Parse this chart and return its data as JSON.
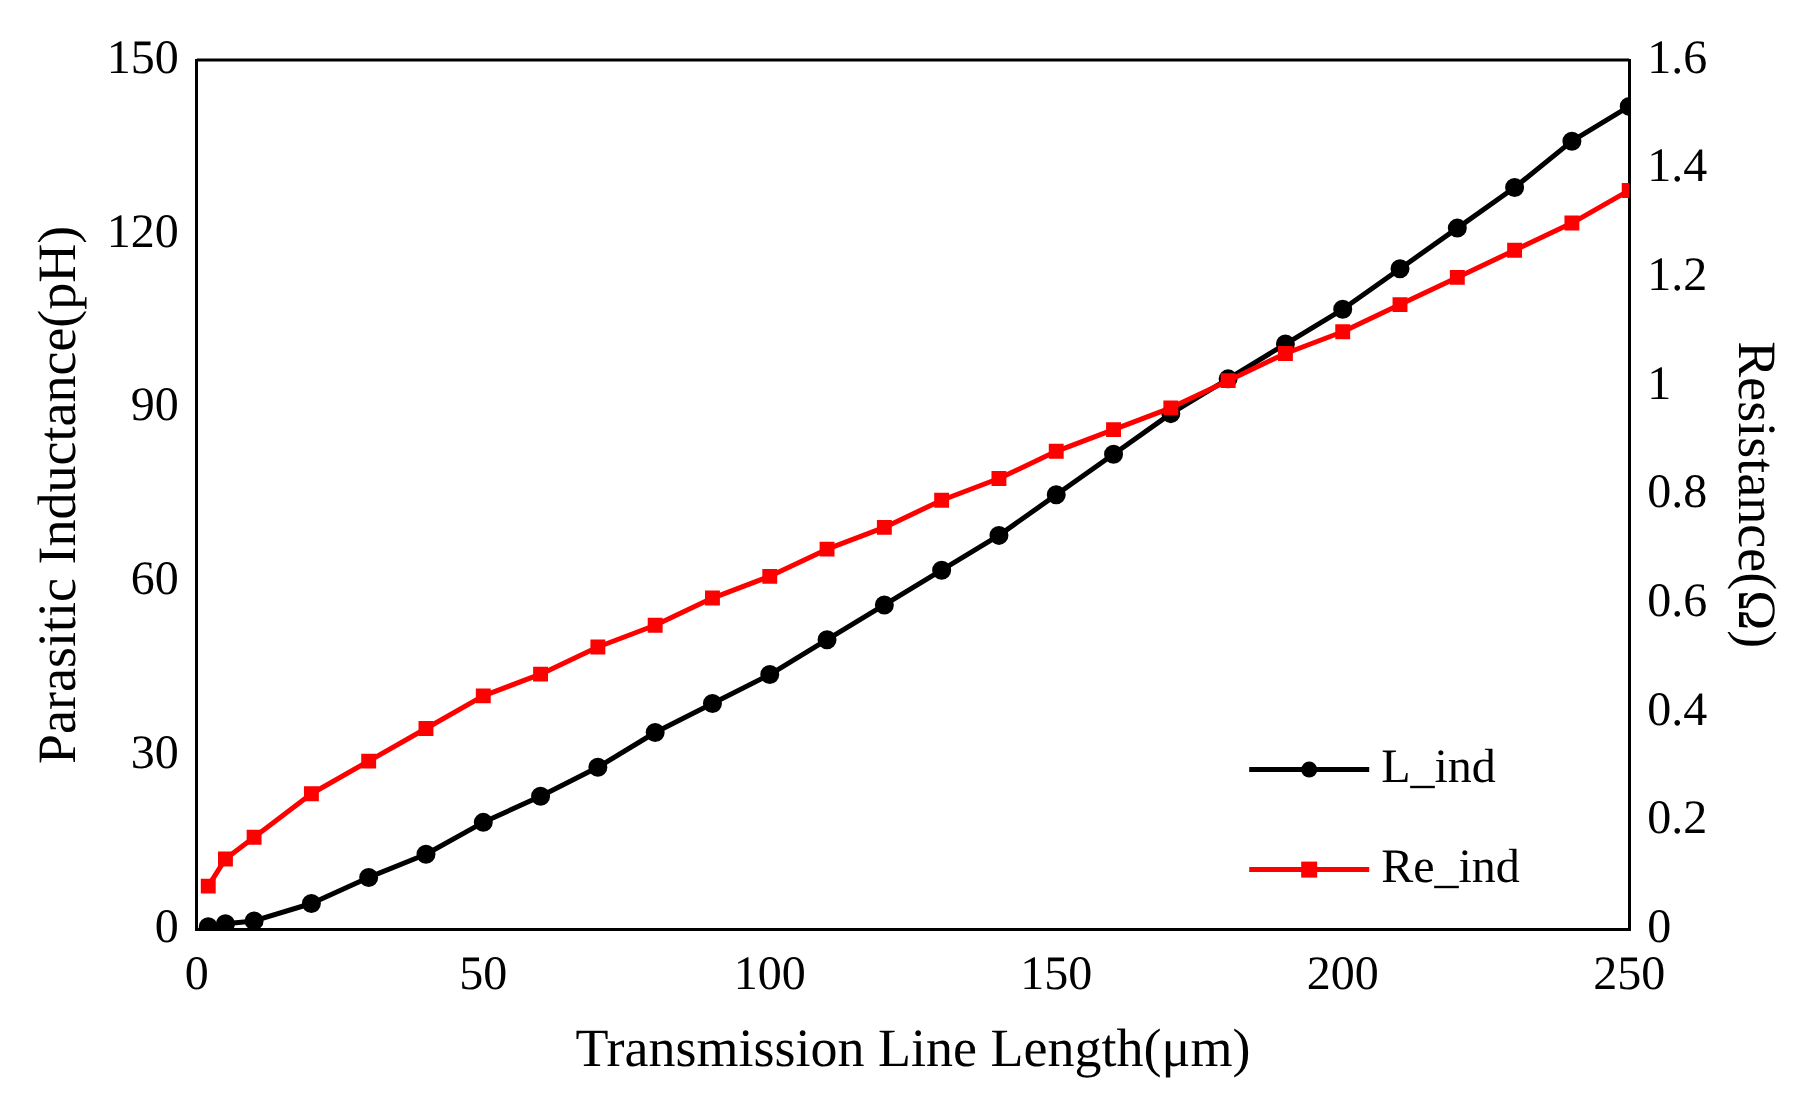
{
  "chart_data": {
    "type": "line",
    "xlabel": "Transmission Line Length(μm)",
    "ylabel": "Parasitic Inductance(pH)",
    "y2label": "Resistance(Ω)",
    "xlim": [
      0,
      250
    ],
    "xticks": [
      0,
      50,
      100,
      150,
      200,
      250
    ],
    "ylim": [
      0,
      150
    ],
    "yticks": [
      0,
      30,
      60,
      90,
      120,
      150
    ],
    "y2lim": [
      0,
      1.6
    ],
    "y2ticks": [
      0,
      0.2,
      0.4,
      0.6,
      0.8,
      1,
      1.2,
      1.4,
      1.6
    ],
    "legend": "bottom right",
    "grid": false,
    "line_style": "solid",
    "series": [
      {
        "name": "L_ind",
        "color": "#000000",
        "marker": "circle",
        "x": [
          2,
          5,
          10,
          20,
          30,
          40,
          50,
          60,
          70,
          80,
          90,
          100,
          110,
          120,
          130,
          140,
          150,
          160,
          170,
          180,
          190,
          200,
          210,
          220,
          230,
          240,
          250
        ],
        "values": [
          0.5,
          1,
          1.5,
          4.5,
          9,
          13,
          18.5,
          23,
          28,
          34,
          39,
          44,
          50,
          56,
          62,
          68,
          75,
          82,
          89,
          95,
          101,
          107,
          114,
          121,
          128,
          136,
          142
        ]
      },
      {
        "name": "Re_ind",
        "color": "#ff0000",
        "marker": "square",
        "axis": "y2",
        "x": [
          2,
          5,
          10,
          20,
          30,
          40,
          50,
          60,
          70,
          80,
          90,
          100,
          110,
          120,
          130,
          140,
          150,
          160,
          170,
          180,
          190,
          200,
          210,
          220,
          230,
          240,
          250
        ],
        "values": [
          0.08,
          0.13,
          0.17,
          0.25,
          0.31,
          0.37,
          0.43,
          0.47,
          0.52,
          0.56,
          0.61,
          0.65,
          0.7,
          0.74,
          0.79,
          0.83,
          0.88,
          0.92,
          0.96,
          1.01,
          1.06,
          1.1,
          1.15,
          1.2,
          1.25,
          1.3,
          1.36
        ]
      }
    ]
  }
}
